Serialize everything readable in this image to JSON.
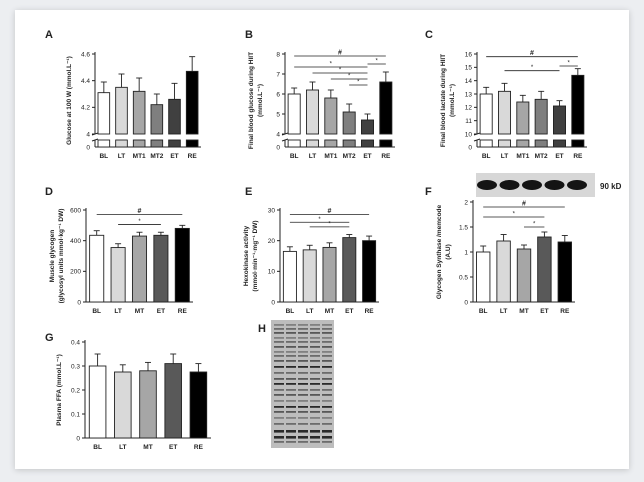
{
  "chart_data": [
    {
      "panel": "A",
      "type": "bar",
      "ylabel": "Glucose at 100 W (mmol.L⁻¹)",
      "categories": [
        "BL",
        "LT",
        "MT1",
        "MT2",
        "ET",
        "RE"
      ],
      "values": [
        4.31,
        4.35,
        4.32,
        4.22,
        4.26,
        4.47
      ],
      "errors": [
        0.08,
        0.1,
        0.1,
        0.08,
        0.12,
        0.11
      ],
      "ylim": [
        4.0,
        4.6
      ],
      "yticks": [
        4.0,
        4.2,
        4.4,
        4.6
      ],
      "broken_axis": true,
      "colors": [
        "#ffffff",
        "#d9d9d9",
        "#a6a6a6",
        "#7f7f7f",
        "#404040",
        "#000000"
      ],
      "brackets": []
    },
    {
      "panel": "B",
      "type": "bar",
      "ylabel": "Final blood glucose during HIIT (mmol.L⁻¹)",
      "categories": [
        "BL",
        "LT",
        "MT1",
        "MT2",
        "ET",
        "RE"
      ],
      "values": [
        6.0,
        6.2,
        5.8,
        5.1,
        4.7,
        6.6
      ],
      "errors": [
        0.3,
        0.4,
        0.4,
        0.4,
        0.3,
        0.5
      ],
      "ylim": [
        4,
        8
      ],
      "yticks": [
        4,
        5,
        6,
        7,
        8
      ],
      "broken_axis": true,
      "colors": [
        "#ffffff",
        "#d9d9d9",
        "#a6a6a6",
        "#7f7f7f",
        "#404040",
        "#000000"
      ],
      "brackets": [
        {
          "from": 0,
          "to": 5,
          "y": 7.9,
          "label": "#"
        },
        {
          "from": 0,
          "to": 4,
          "y": 7.35,
          "label": "*"
        },
        {
          "from": 1,
          "to": 4,
          "y": 7.05,
          "label": "*"
        },
        {
          "from": 2,
          "to": 4,
          "y": 6.75,
          "label": "*"
        },
        {
          "from": 3,
          "to": 4,
          "y": 6.45,
          "label": "*"
        },
        {
          "from": 4,
          "to": 5,
          "y": 7.5,
          "label": "*"
        }
      ]
    },
    {
      "panel": "C",
      "type": "bar",
      "ylabel": "Final blood lactate during HIIT (mmol.L⁻¹)",
      "categories": [
        "BL",
        "LT",
        "MT1",
        "MT2",
        "ET",
        "RE"
      ],
      "values": [
        13.0,
        13.2,
        12.4,
        12.6,
        12.1,
        14.4
      ],
      "errors": [
        0.5,
        0.6,
        0.5,
        0.6,
        0.4,
        0.5
      ],
      "ylim": [
        10,
        16
      ],
      "yticks": [
        10,
        11,
        12,
        13,
        14,
        15,
        16
      ],
      "broken_axis": true,
      "colors": [
        "#ffffff",
        "#d9d9d9",
        "#a6a6a6",
        "#7f7f7f",
        "#404040",
        "#000000"
      ],
      "brackets": [
        {
          "from": 0,
          "to": 5,
          "y": 15.8,
          "label": "#"
        },
        {
          "from": 1,
          "to": 4,
          "y": 14.75,
          "label": "*"
        },
        {
          "from": 4,
          "to": 5,
          "y": 15.1,
          "label": "*"
        }
      ]
    },
    {
      "panel": "D",
      "type": "bar",
      "ylabel": "Muscle glycogen (glycosyl units mmol·kg⁻¹ DW)",
      "categories": [
        "BL",
        "LT",
        "MT",
        "ET",
        "RE"
      ],
      "values": [
        435,
        355,
        430,
        435,
        480
      ],
      "errors": [
        30,
        25,
        25,
        20,
        20
      ],
      "ylim": [
        0,
        600
      ],
      "yticks": [
        0,
        200,
        400,
        600
      ],
      "broken_axis": false,
      "colors": [
        "#ffffff",
        "#d9d9d9",
        "#a6a6a6",
        "#595959",
        "#000000"
      ],
      "brackets": [
        {
          "from": 0,
          "to": 4,
          "y": 570,
          "label": "#"
        },
        {
          "from": 1,
          "to": 3,
          "y": 505,
          "label": "*"
        }
      ]
    },
    {
      "panel": "E",
      "type": "bar",
      "ylabel": "Hexokinase activity (mmol·min⁻¹·mg⁻¹ DW)",
      "categories": [
        "BL",
        "LT",
        "MT",
        "ET",
        "RE"
      ],
      "values": [
        16.5,
        17.0,
        17.8,
        21.0,
        20.0
      ],
      "errors": [
        1.5,
        1.5,
        1.5,
        1.0,
        1.5
      ],
      "ylim": [
        0,
        30
      ],
      "yticks": [
        0,
        10,
        20,
        30
      ],
      "broken_axis": false,
      "colors": [
        "#ffffff",
        "#d9d9d9",
        "#a6a6a6",
        "#595959",
        "#000000"
      ],
      "brackets": [
        {
          "from": 0,
          "to": 4,
          "y": 28.5,
          "label": "#"
        },
        {
          "from": 0,
          "to": 3,
          "y": 26.0,
          "label": "*"
        },
        {
          "from": 1,
          "to": 3,
          "y": 24.5,
          "label": "*"
        }
      ]
    },
    {
      "panel": "F",
      "type": "bar",
      "ylabel": "Glycogen Synthase /memcode (A.U)",
      "categories": [
        "BL",
        "LT",
        "MT",
        "ET",
        "RE"
      ],
      "values": [
        1.0,
        1.22,
        1.06,
        1.3,
        1.2
      ],
      "errors": [
        0.12,
        0.13,
        0.08,
        0.1,
        0.13
      ],
      "ylim": [
        0,
        2.0
      ],
      "yticks": [
        0.0,
        0.5,
        1.0,
        1.5,
        2.0
      ],
      "broken_axis": false,
      "colors": [
        "#ffffff",
        "#d9d9d9",
        "#a6a6a6",
        "#595959",
        "#000000"
      ],
      "brackets": [
        {
          "from": 0,
          "to": 4,
          "y": 1.9,
          "label": "#"
        },
        {
          "from": 0,
          "to": 3,
          "y": 1.7,
          "label": "*"
        },
        {
          "from": 2,
          "to": 3,
          "y": 1.5,
          "label": "*"
        }
      ]
    },
    {
      "panel": "G",
      "type": "bar",
      "ylabel": "Plasma FFA (mmol.L⁻¹)",
      "categories": [
        "BL",
        "LT",
        "MT",
        "ET",
        "RE"
      ],
      "values": [
        0.3,
        0.275,
        0.28,
        0.31,
        0.275
      ],
      "errors": [
        0.05,
        0.03,
        0.035,
        0.04,
        0.035
      ],
      "ylim": [
        0,
        0.4
      ],
      "yticks": [
        0.0,
        0.1,
        0.2,
        0.3,
        0.4
      ],
      "broken_axis": false,
      "colors": [
        "#ffffff",
        "#d9d9d9",
        "#a6a6a6",
        "#595959",
        "#000000"
      ],
      "brackets": []
    }
  ],
  "blot": {
    "label": "90 kD",
    "lanes": 5
  },
  "memcode_panel": {
    "label": "H",
    "lanes": 5
  }
}
